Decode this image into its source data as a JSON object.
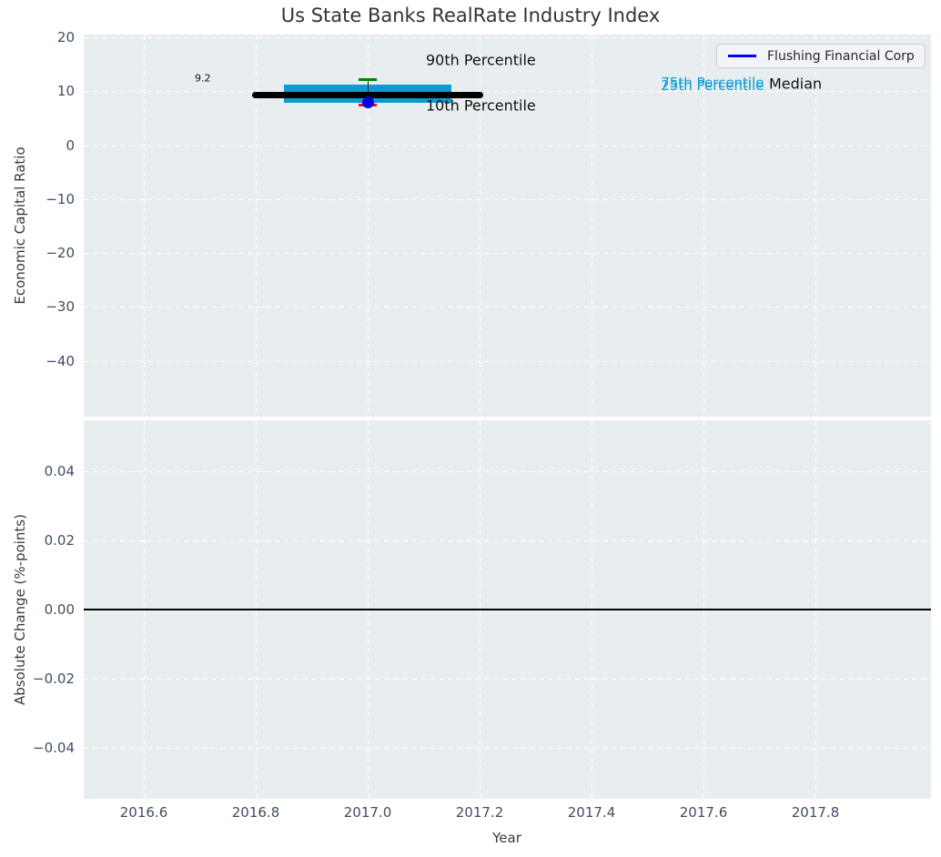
{
  "title": "Us State Banks RealRate Industry Index",
  "legend": {
    "label": "Flushing Financial Corp",
    "line_color": "#0000ff"
  },
  "colors": {
    "axes_bg": "#e8edf0",
    "grid": "#ffffff",
    "tick": "#3f4e63",
    "text_dark": "#111111",
    "cyan": "#0d9bd2",
    "green": "#008000",
    "red": "#ee1111",
    "blue_dot": "#0000e6",
    "median_black": "#000000"
  },
  "chart_data": [
    {
      "type": "box",
      "subplot": "top",
      "title": "Us State Banks RealRate Industry Index",
      "xlabel": "Year",
      "ylabel": "Economic Capital Ratio",
      "xlim": [
        2016.49,
        2018.01
      ],
      "ylim": [
        -50.6,
        20.6
      ],
      "grid": "white-dashed",
      "legend_position": "upper-right",
      "xticks": [
        {
          "v": 2016.6,
          "label": "2016.6"
        },
        {
          "v": 2016.8,
          "label": "2016.8"
        },
        {
          "v": 2017.0,
          "label": "2017.0"
        },
        {
          "v": 2017.2,
          "label": "2017.2"
        },
        {
          "v": 2017.4,
          "label": "2017.4"
        },
        {
          "v": 2017.6,
          "label": "2017.6"
        },
        {
          "v": 2017.8,
          "label": "2017.8"
        }
      ],
      "yticks": [
        {
          "v": 20,
          "label": "20"
        },
        {
          "v": 10,
          "label": "10"
        },
        {
          "v": 0,
          "label": "0"
        },
        {
          "v": -10,
          "label": "−10"
        },
        {
          "v": -20,
          "label": "−20"
        },
        {
          "v": -30,
          "label": "−30"
        },
        {
          "v": -40,
          "label": "−40"
        }
      ],
      "median": {
        "x_start": 2016.8,
        "x_end": 2017.2,
        "value": 9.2,
        "label": "9.2"
      },
      "box_p25_p75": {
        "x_start": 2016.85,
        "x_end": 2017.15,
        "p25": 7.8,
        "p75": 11.2
      },
      "p90": {
        "x": 2017.0,
        "value": 12.2
      },
      "p10": {
        "x": 2017.0,
        "value": 7.5
      },
      "company_point": {
        "name": "Flushing Financial Corp",
        "x": 2017.0,
        "value": 8.0
      },
      "annotations": [
        {
          "text": "9.2",
          "x": 2016.691,
          "y": 12.4,
          "color": "#111111",
          "size": 11
        },
        {
          "text": "90th Percentile",
          "x": 2017.104,
          "y": 15.8,
          "color": "#111111",
          "size": 16
        },
        {
          "text": "10th Percentile",
          "x": 2017.104,
          "y": 7.33,
          "color": "#111111",
          "size": 16
        },
        {
          "text": "75th Percentile",
          "x": 2017.524,
          "y": 11.55,
          "color": "#0d9bd2",
          "size": 15
        },
        {
          "text": "25th Percentile",
          "x": 2017.524,
          "y": 11.13,
          "color": "#0d9bd2",
          "size": 15
        },
        {
          "text": "Median",
          "x": 2017.717,
          "y": 11.38,
          "color": "#111111",
          "size": 16
        }
      ]
    },
    {
      "type": "line",
      "subplot": "bottom",
      "ylabel": "Absolute Change (%-points)",
      "ylim": [
        -0.055,
        0.055
      ],
      "grid": "white-dashed",
      "yticks": [
        {
          "v": 0.04,
          "label": "0.04"
        },
        {
          "v": 0.02,
          "label": "0.02"
        },
        {
          "v": 0.0,
          "label": "0.00"
        },
        {
          "v": -0.02,
          "label": "−0.02"
        },
        {
          "v": -0.04,
          "label": "−0.04"
        }
      ],
      "zero_line": {
        "value": 0.0,
        "color": "#000000"
      },
      "series": []
    }
  ]
}
